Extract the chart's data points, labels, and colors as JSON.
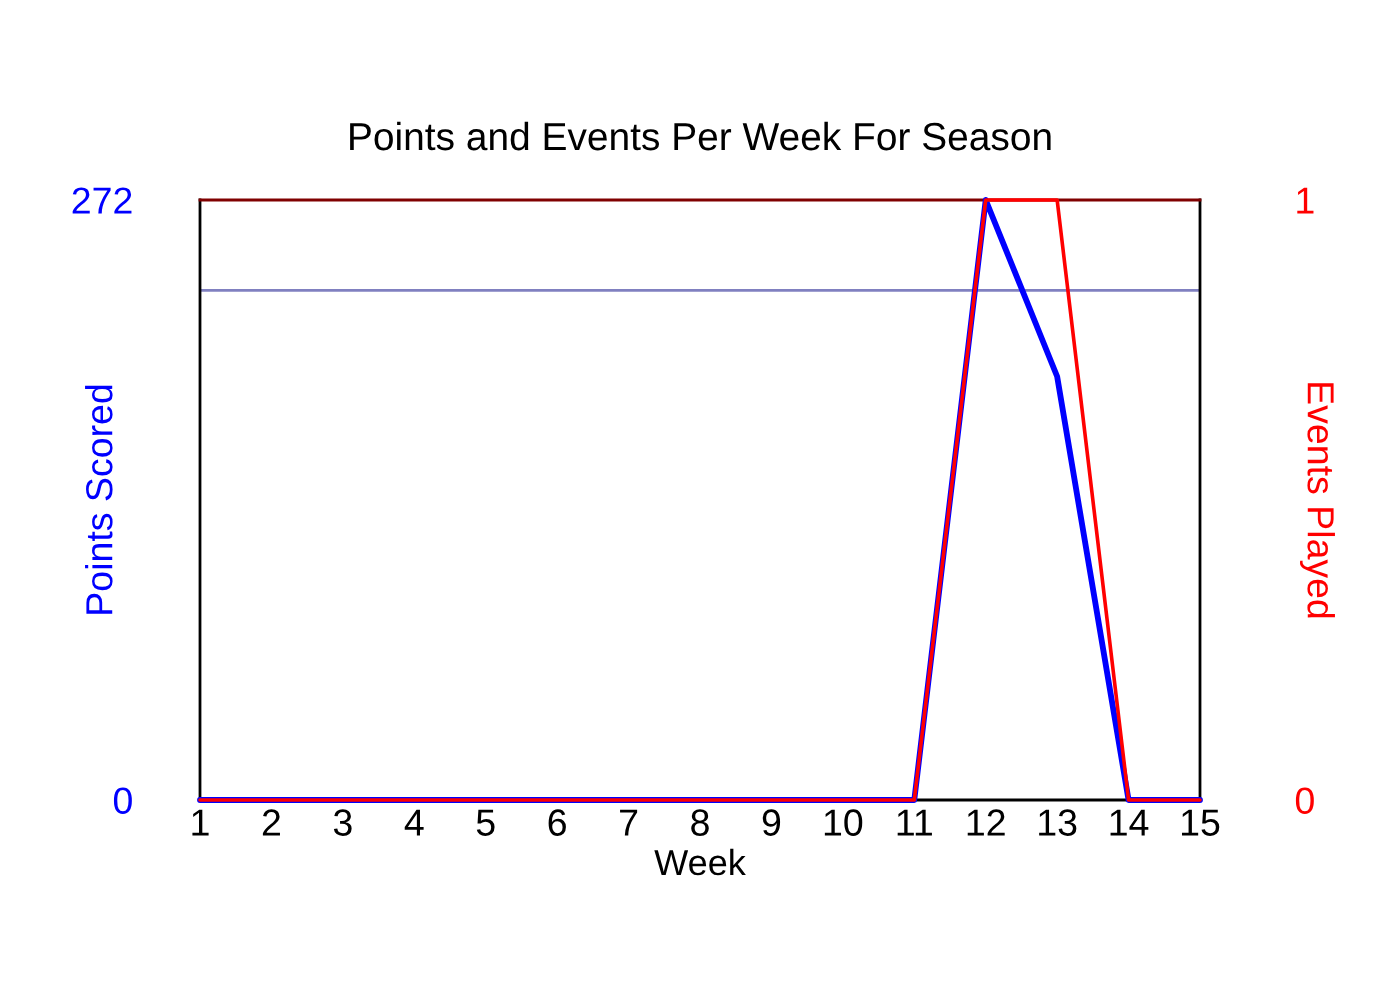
{
  "chart_data": {
    "type": "line",
    "title": "Points and Events Per Week For Season",
    "xlabel": "Week",
    "ylabel": "Points Scored",
    "y2label": "Events Played",
    "x": [
      1,
      2,
      3,
      4,
      5,
      6,
      7,
      8,
      9,
      10,
      11,
      12,
      13,
      14,
      15
    ],
    "xlim": [
      1,
      15
    ],
    "xticks": [
      1,
      2,
      3,
      4,
      5,
      6,
      7,
      8,
      9,
      10,
      11,
      12,
      13,
      14,
      15
    ],
    "ylim": [
      0,
      272
    ],
    "yticks": [
      0,
      272
    ],
    "y2lim": [
      0,
      1
    ],
    "y2ticks": [
      0,
      1
    ],
    "series": [
      {
        "color": "#0000ff",
        "values": [
          0,
          0,
          0,
          0,
          0,
          0,
          0,
          0,
          0,
          0,
          0,
          272,
          192,
          0,
          0
        ]
      },
      {
        "color": "#ff0000",
        "axis": "y2",
        "values": [
          0,
          0,
          0,
          0,
          0,
          0,
          0,
          0,
          0,
          0,
          0,
          1,
          1,
          0,
          0
        ]
      }
    ],
    "ref_lines": [
      {
        "axis": "y",
        "value": 231,
        "color": "#8080c0"
      }
    ],
    "grid": false,
    "legend": false,
    "marker": "none",
    "line_style": "solid"
  }
}
